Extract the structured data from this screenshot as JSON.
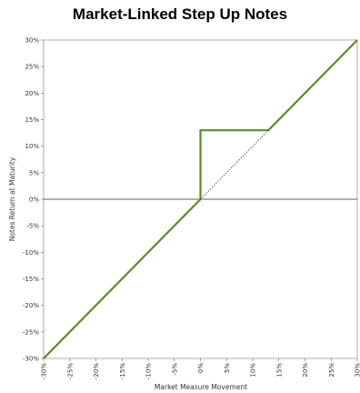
{
  "chart_data": {
    "type": "line",
    "title": "Market-Linked Step Up Notes",
    "xlabel": "Market Measure Movement",
    "ylabel": "Notes Return at Maturity",
    "xlim": [
      -30,
      30
    ],
    "ylim": [
      -30,
      30
    ],
    "x_ticks": [
      -30,
      -25,
      -20,
      -15,
      -10,
      -5,
      0,
      5,
      10,
      15,
      20,
      25,
      30
    ],
    "y_ticks": [
      30,
      25,
      20,
      15,
      10,
      5,
      0,
      -5,
      -10,
      -15,
      -20,
      -25,
      -30
    ],
    "x_tick_labels": [
      "-30%",
      "-25%",
      "-20%",
      "-15%",
      "-10%",
      "-5%",
      "0%",
      "5%",
      "10%",
      "15%",
      "20%",
      "25%",
      "30%"
    ],
    "y_tick_labels": [
      "30%",
      "25%",
      "20%",
      "15%",
      "10%",
      "5%",
      "0%",
      "-5%",
      "-10%",
      "-15%",
      "-20%",
      "-25%",
      "-30%"
    ],
    "grid": false,
    "series": [
      {
        "style": "solid",
        "color": "#5b8c2a",
        "x": [
          -30,
          0,
          0,
          13,
          30
        ],
        "y": [
          -30,
          0,
          13,
          13,
          30
        ]
      },
      {
        "style": "dotted",
        "color": "#333333",
        "x": [
          0,
          13
        ],
        "y": [
          0,
          13
        ]
      }
    ]
  }
}
